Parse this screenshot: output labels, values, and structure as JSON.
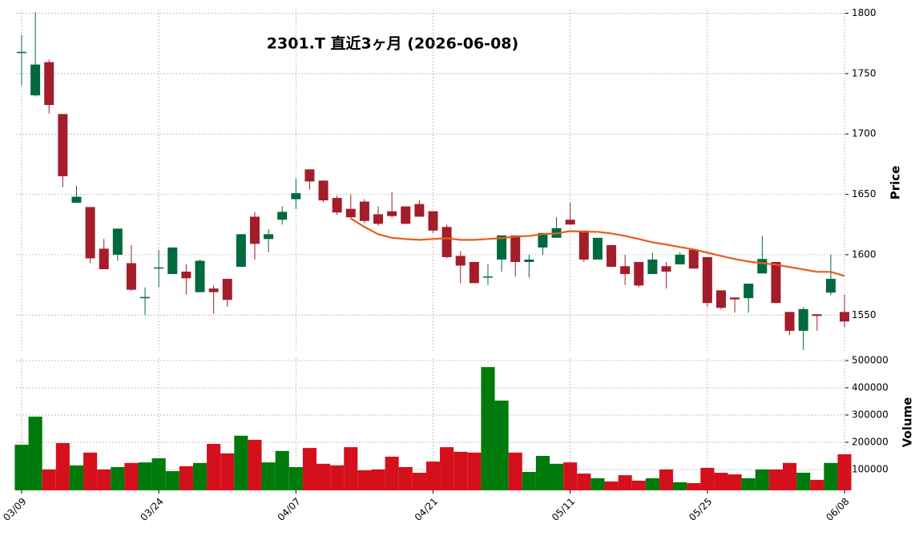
{
  "chart_data": [
    {
      "type": "candlestick",
      "title": "2301.T  直近3ヶ月  (2026-06-08)",
      "ylabel": "Price",
      "categories": [
        "03/09",
        null,
        null,
        null,
        null,
        null,
        null,
        null,
        null,
        null,
        "03/24",
        null,
        null,
        null,
        null,
        null,
        null,
        null,
        null,
        null,
        "04/07",
        null,
        null,
        null,
        null,
        null,
        null,
        null,
        null,
        null,
        "04/21",
        null,
        null,
        null,
        null,
        null,
        null,
        null,
        null,
        null,
        "05/11",
        null,
        null,
        null,
        null,
        null,
        null,
        null,
        null,
        null,
        "05/25",
        null,
        null,
        null,
        null,
        null,
        null,
        null,
        null,
        null,
        "06/08"
      ],
      "open": [
        1767,
        1732,
        1759.5,
        1716.5,
        1643,
        1639.5,
        1605,
        1600,
        1593,
        1564,
        1588.5,
        1584,
        1586,
        1569,
        1572,
        1580,
        1590,
        1631.5,
        1613,
        1629,
        1646,
        1670.7,
        1661.4,
        1647,
        1638,
        1644,
        1633.5,
        1636,
        1640,
        1642,
        1636,
        1623,
        1599,
        1594,
        1581,
        1596,
        1616,
        1594,
        1606,
        1614,
        1629,
        1620,
        1596,
        1608,
        1590.5,
        1594,
        1584,
        1590.5,
        1592,
        1604,
        1598,
        1570.5,
        1564.6,
        1564,
        1584.5,
        1594,
        1552.6,
        1537,
        1550.7,
        1568.6,
        1552.6
      ],
      "high": [
        1782,
        1801,
        1761.5,
        1716.5,
        1657,
        1639.5,
        1613,
        1621.6,
        1608,
        1573,
        1604,
        1606,
        1592,
        1596,
        1574.5,
        1580,
        1617,
        1635.5,
        1621,
        1640,
        1663,
        1670.7,
        1661.4,
        1649,
        1650,
        1646,
        1640,
        1652,
        1640,
        1645,
        1636,
        1625,
        1603,
        1594,
        1592,
        1616,
        1616,
        1600,
        1618,
        1631,
        1643,
        1620,
        1614,
        1608,
        1600,
        1594,
        1601.7,
        1594,
        1602,
        1604,
        1598,
        1570.5,
        1564.6,
        1576,
        1615.6,
        1594,
        1552.6,
        1556.6,
        1550.7,
        1600,
        1567
      ],
      "low": [
        1740,
        1731,
        1717,
        1656,
        1643,
        1593,
        1588,
        1595,
        1570,
        1550,
        1573,
        1584,
        1567,
        1569,
        1551,
        1557,
        1590,
        1596,
        1602,
        1625,
        1638,
        1654,
        1643.5,
        1633,
        1630,
        1626,
        1624,
        1631,
        1625.6,
        1631.5,
        1618,
        1597,
        1576.5,
        1576.5,
        1575,
        1586,
        1582,
        1581,
        1600,
        1614,
        1625,
        1594,
        1596,
        1590,
        1575,
        1573,
        1584,
        1572,
        1592,
        1588.5,
        1557,
        1554.6,
        1552,
        1552,
        1584.5,
        1560,
        1533.4,
        1521,
        1537,
        1566.6,
        1540
      ],
      "close": [
        1768,
        1757.5,
        1724,
        1665,
        1648,
        1597,
        1588,
        1621.6,
        1571,
        1565,
        1589.5,
        1606,
        1580.5,
        1595,
        1569,
        1562.6,
        1617,
        1609,
        1617,
        1635.5,
        1651,
        1660.7,
        1645,
        1635,
        1631,
        1628,
        1625.6,
        1632,
        1625.6,
        1631.5,
        1620,
        1598,
        1591,
        1576.5,
        1582,
        1616,
        1594,
        1596,
        1618,
        1622,
        1625,
        1596,
        1614,
        1590,
        1584,
        1574.5,
        1596,
        1586,
        1600,
        1588.5,
        1560,
        1556,
        1563,
        1576,
        1596.5,
        1560,
        1537,
        1555,
        1549.3,
        1580,
        1544.7
      ],
      "up_color": "#00693e",
      "down_color": "#a31d2a",
      "moving_average": {
        "color": "#e85d1c",
        "values": [
          null,
          null,
          null,
          null,
          null,
          null,
          null,
          null,
          null,
          null,
          null,
          null,
          null,
          null,
          null,
          null,
          null,
          null,
          null,
          null,
          null,
          null,
          null,
          null,
          1630,
          1623,
          1617,
          1614,
          1613,
          1612.3,
          1613,
          1613.7,
          1612.3,
          1612.3,
          1613,
          1613.7,
          1615,
          1615.6,
          1617,
          1617.6,
          1619.6,
          1619,
          1619,
          1617.6,
          1615.6,
          1613,
          1610.3,
          1608.4,
          1606.4,
          1604.4,
          1601.7,
          1599,
          1596.4,
          1594.4,
          1593,
          1591.8,
          1589.8,
          1587.8,
          1585.8,
          1585.8,
          1582.5
        ]
      },
      "ylim": [
        1519,
        1803
      ],
      "yticks": [
        1550,
        1600,
        1650,
        1700,
        1750,
        1800
      ],
      "grid": true
    },
    {
      "type": "bar",
      "ylabel": "Volume",
      "values": [
        191000,
        294000,
        100000,
        197000,
        115000,
        162000,
        100000,
        109000,
        124000,
        126000,
        141000,
        94000,
        112000,
        124000,
        194000,
        159000,
        224000,
        209000,
        126000,
        168000,
        109000,
        179000,
        121000,
        115000,
        182000,
        97000,
        100000,
        147000,
        109000,
        88000,
        129000,
        182000,
        165000,
        162000,
        476000,
        353000,
        162000,
        91000,
        150000,
        121000,
        126000,
        85000,
        68000,
        56000,
        79000,
        59000,
        68000,
        100000,
        53000,
        50000,
        106000,
        88000,
        82000,
        68000,
        100000,
        100000,
        124000,
        88000,
        62000,
        124000,
        156000
      ],
      "up_color": "#007a0a",
      "down_color": "#d4101c",
      "ylim": [
        23500,
        508800
      ],
      "yticks": [
        100000,
        200000,
        300000,
        400000,
        500000
      ],
      "grid": true
    }
  ]
}
